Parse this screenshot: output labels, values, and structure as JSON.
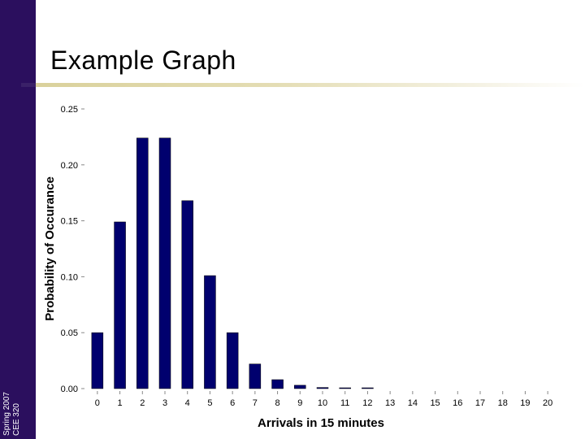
{
  "slide": {
    "title": "Example Graph",
    "sidebar_line1": "CEE 320",
    "sidebar_line2": "Spring 2007"
  },
  "colors": {
    "sidebar": "#2b0f5e",
    "bar": "#00006e",
    "rule": "#d9d09a"
  },
  "chart_data": {
    "type": "bar",
    "title": "",
    "xlabel": "Arrivals in 15 minutes",
    "ylabel": "Probability of Occurance",
    "categories": [
      "0",
      "1",
      "2",
      "3",
      "4",
      "5",
      "6",
      "7",
      "8",
      "9",
      "10",
      "11",
      "12",
      "13",
      "14",
      "15",
      "16",
      "17",
      "18",
      "19",
      "20"
    ],
    "values": [
      0.05,
      0.149,
      0.224,
      0.224,
      0.168,
      0.101,
      0.05,
      0.022,
      0.008,
      0.003,
      0.001,
      0.0003,
      0.0001,
      0,
      0,
      0,
      0,
      0,
      0,
      0,
      0
    ],
    "ylim": [
      0,
      0.25
    ],
    "yticks": [
      "0.00",
      "0.05",
      "0.10",
      "0.15",
      "0.20",
      "0.25"
    ],
    "grid": false,
    "legend": "none"
  }
}
